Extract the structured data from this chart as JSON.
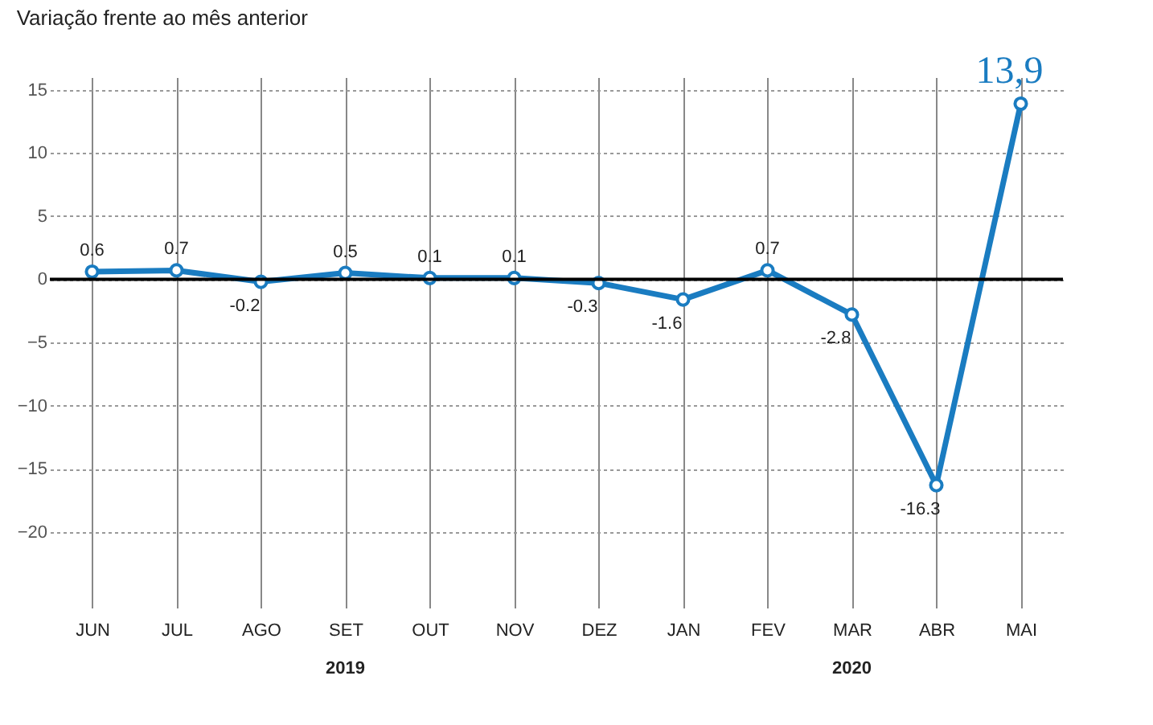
{
  "chart_data": {
    "type": "line",
    "subtitle": "Variação frente ao mês anterior",
    "categories": [
      "JUN",
      "JUL",
      "AGO",
      "SET",
      "OUT",
      "NOV",
      "DEZ",
      "JAN",
      "FEV",
      "MAR",
      "ABR",
      "MAI"
    ],
    "series": [
      {
        "color": "#1a7cc1",
        "values": [
          0.6,
          0.7,
          -0.2,
          0.5,
          0.1,
          0.1,
          -0.3,
          -1.6,
          0.7,
          -2.8,
          -16.3,
          13.9
        ],
        "value_labels": [
          "0.6",
          "0.7",
          "-0.2",
          "0.5",
          "0.1",
          "0.1",
          "-0.3",
          "-1.6",
          "0.7",
          "-2.8",
          "-16.3",
          "13,9"
        ]
      }
    ],
    "ylim": [
      -26,
      16
    ],
    "yticks": [
      15,
      10,
      5,
      0,
      -5,
      -10,
      -15,
      -20
    ],
    "ref_lines": [
      {
        "axis": "y",
        "value": 0,
        "color": "#000000"
      }
    ],
    "annotations": [
      "2019",
      "2020"
    ],
    "grid": true,
    "marker": "circle"
  }
}
